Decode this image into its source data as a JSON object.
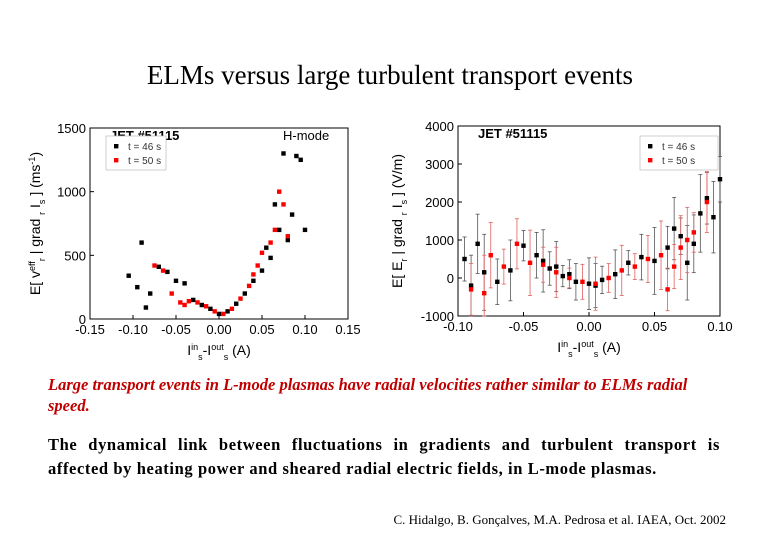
{
  "slide": {
    "title": "ELMs versus large turbulent transport events",
    "caption": "Large transport events in L-mode plasmas have radial velocities rather similar to ELMs radial speed.",
    "body": "The dynamical link between fluctuations in gradients and turbulent transport is affected by heating power and sheared radial electric fields, in L-mode plasmas.",
    "citation": "C. Hidalgo, B. Gonçalves, M.A. Pedrosa et al. IAEA, Oct. 2002"
  },
  "chart_data": [
    {
      "type": "scatter",
      "title": "JET #51115",
      "mode_label": "H-mode",
      "xlabel": "I_s^in - I_s^out (A)",
      "ylabel": "E[ v_r^eff | grad_r I_s ] (ms^-1)",
      "xlim": [
        -0.15,
        0.15
      ],
      "ylim": [
        0,
        1500
      ],
      "xticks": [
        "-0.15",
        "-0.10",
        "-0.05",
        "0.00",
        "0.05",
        "0.10",
        "0.15"
      ],
      "yticks": [
        "0",
        "500",
        "1000",
        "1500"
      ],
      "legend": [
        "t = 46 s",
        "t = 50 s"
      ],
      "colors": [
        "#000000",
        "#ff0000"
      ],
      "series": [
        {
          "name": "t = 46 s",
          "points": [
            [
              -0.105,
              340
            ],
            [
              -0.095,
              250
            ],
            [
              -0.085,
              90
            ],
            [
              -0.07,
              410
            ],
            [
              -0.06,
              370
            ],
            [
              -0.05,
              300
            ],
            [
              -0.04,
              280
            ],
            [
              -0.03,
              150
            ],
            [
              -0.02,
              110
            ],
            [
              -0.01,
              80
            ],
            [
              0.0,
              40
            ],
            [
              0.01,
              60
            ],
            [
              0.02,
              120
            ],
            [
              0.03,
              200
            ],
            [
              0.04,
              300
            ],
            [
              0.05,
              380
            ],
            [
              0.06,
              480
            ],
            [
              0.065,
              900
            ],
            [
              0.07,
              700
            ],
            [
              0.08,
              620
            ],
            [
              0.085,
              820
            ],
            [
              0.09,
              1280
            ],
            [
              0.1,
              700
            ],
            [
              -0.09,
              600
            ],
            [
              0.075,
              1300
            ],
            [
              0.095,
              1250
            ],
            [
              -0.08,
              200
            ],
            [
              0.055,
              560
            ]
          ]
        },
        {
          "name": "t = 50 s",
          "points": [
            [
              -0.075,
              420
            ],
            [
              -0.065,
              380
            ],
            [
              -0.055,
              200
            ],
            [
              -0.045,
              130
            ],
            [
              -0.035,
              140
            ],
            [
              -0.025,
              130
            ],
            [
              -0.015,
              100
            ],
            [
              -0.005,
              60
            ],
            [
              0.005,
              40
            ],
            [
              0.015,
              80
            ],
            [
              0.025,
              160
            ],
            [
              0.035,
              260
            ],
            [
              0.045,
              420
            ],
            [
              0.05,
              520
            ],
            [
              0.06,
              600
            ],
            [
              0.065,
              700
            ],
            [
              0.07,
              1000
            ],
            [
              0.075,
              900
            ],
            [
              0.08,
              650
            ],
            [
              -0.04,
              110
            ],
            [
              0.04,
              350
            ]
          ]
        }
      ]
    },
    {
      "type": "scatter",
      "title": "JET #51115",
      "xlabel": "I_s^in - I_s^out (A)",
      "ylabel": "E[ E_r | grad_r I_s ] (V/m)",
      "xlim": [
        -0.1,
        0.1
      ],
      "ylim": [
        -1000,
        4000
      ],
      "xticks": [
        "-0.10",
        "-0.05",
        "0.00",
        "0.05",
        "0.10"
      ],
      "yticks": [
        "-1000",
        "0",
        "1000",
        "2000",
        "3000",
        "4000"
      ],
      "legend": [
        "t = 46 s",
        "t = 50 s"
      ],
      "colors": [
        "#000000",
        "#ff0000"
      ],
      "series": [
        {
          "name": "t = 46 s",
          "points": [
            [
              -0.095,
              500
            ],
            [
              -0.085,
              900
            ],
            [
              -0.08,
              150
            ],
            [
              -0.07,
              -100
            ],
            [
              -0.06,
              200
            ],
            [
              -0.05,
              850
            ],
            [
              -0.04,
              600
            ],
            [
              -0.035,
              450
            ],
            [
              -0.03,
              250
            ],
            [
              -0.025,
              300
            ],
            [
              -0.02,
              50
            ],
            [
              -0.01,
              -100
            ],
            [
              0.0,
              -150
            ],
            [
              0.01,
              -50
            ],
            [
              0.02,
              100
            ],
            [
              0.03,
              400
            ],
            [
              0.04,
              550
            ],
            [
              0.05,
              450
            ],
            [
              0.06,
              800
            ],
            [
              0.065,
              1300
            ],
            [
              0.07,
              1100
            ],
            [
              0.08,
              900
            ],
            [
              0.085,
              1700
            ],
            [
              0.09,
              2100
            ],
            [
              0.095,
              1600
            ],
            [
              0.1,
              2600
            ],
            [
              -0.09,
              -200
            ],
            [
              0.075,
              400
            ],
            [
              -0.015,
              100
            ],
            [
              0.005,
              -200
            ]
          ]
        },
        {
          "name": "t = 50 s",
          "points": [
            [
              -0.09,
              -300
            ],
            [
              -0.075,
              600
            ],
            [
              -0.065,
              300
            ],
            [
              -0.055,
              900
            ],
            [
              -0.045,
              400
            ],
            [
              -0.035,
              350
            ],
            [
              -0.025,
              150
            ],
            [
              -0.015,
              0
            ],
            [
              -0.005,
              -100
            ],
            [
              0.005,
              -150
            ],
            [
              0.015,
              0
            ],
            [
              0.025,
              200
            ],
            [
              0.035,
              300
            ],
            [
              0.045,
              500
            ],
            [
              0.055,
              600
            ],
            [
              0.065,
              300
            ],
            [
              0.07,
              800
            ],
            [
              0.08,
              1200
            ],
            [
              0.09,
              2000
            ],
            [
              -0.08,
              -400
            ],
            [
              0.06,
              -300
            ],
            [
              0.075,
              1000
            ]
          ]
        }
      ]
    }
  ]
}
